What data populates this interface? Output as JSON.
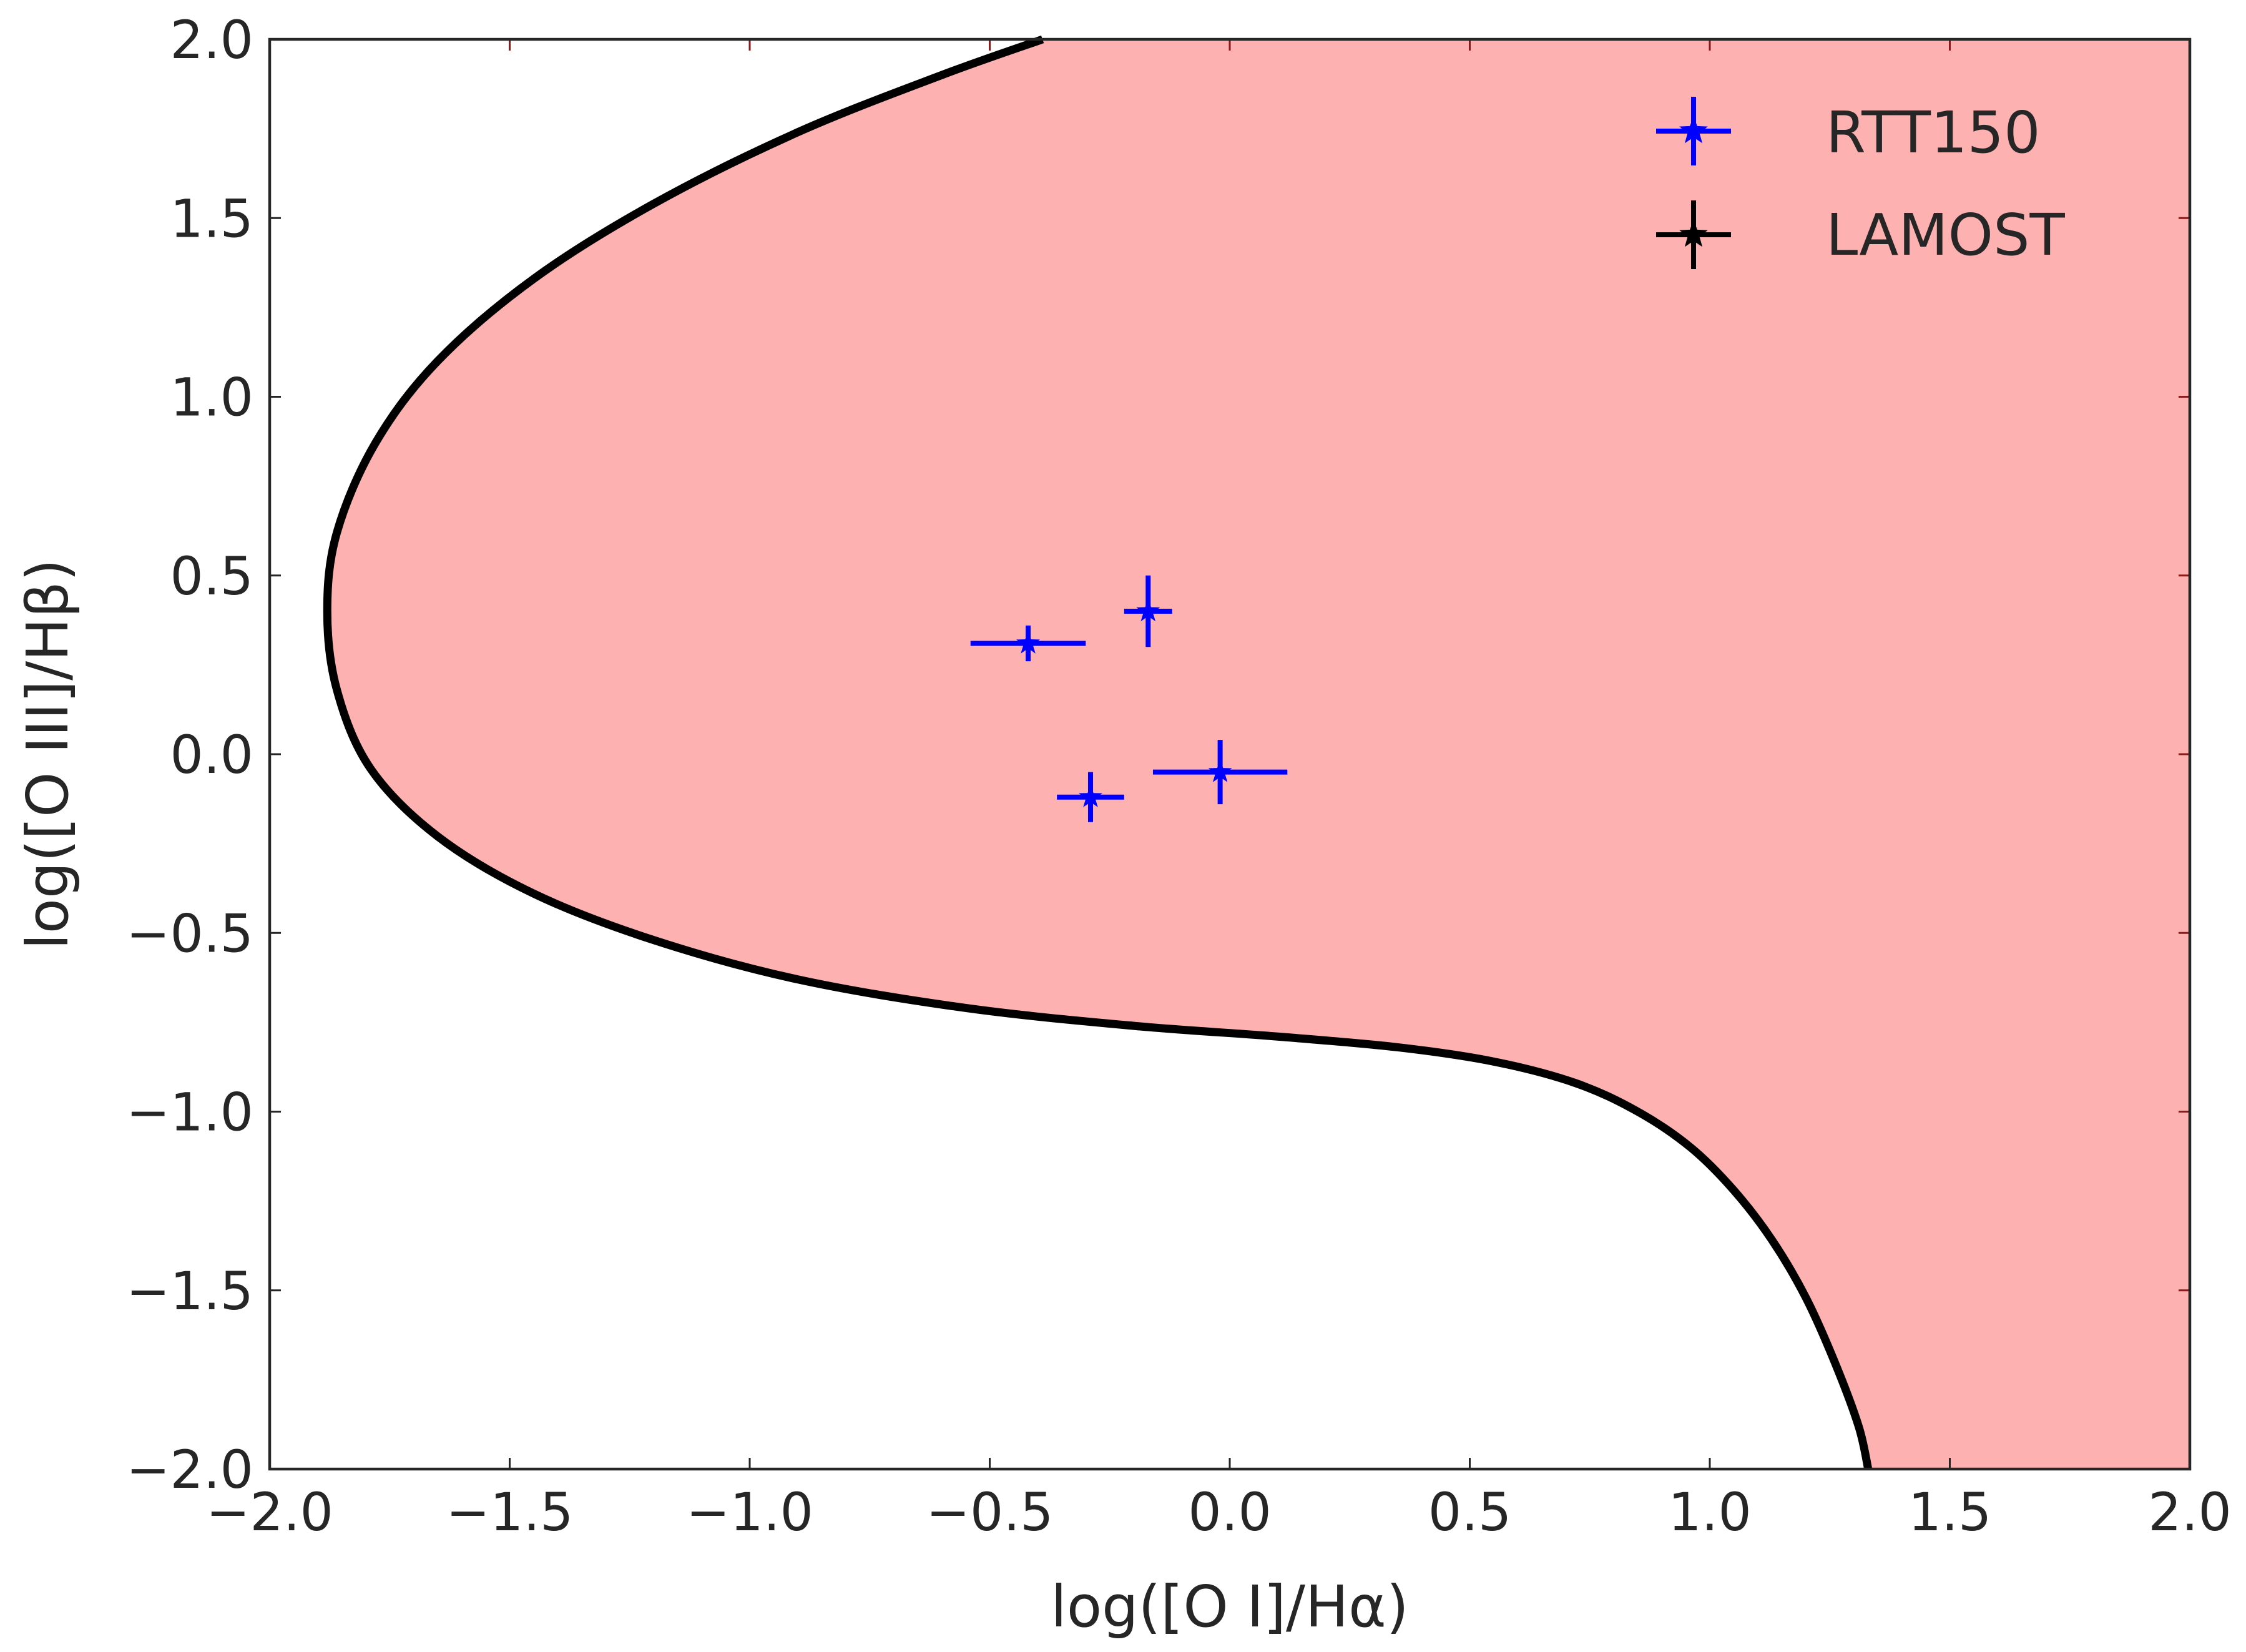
{
  "chart_data": {
    "type": "scatter",
    "xlabel": "log([O I]/Hα)",
    "ylabel": "log([O III]/Hβ)",
    "xlim": [
      -2.0,
      2.0
    ],
    "ylim": [
      -2.0,
      2.0
    ],
    "xticks": [
      -2.0,
      -1.5,
      -1.0,
      -0.5,
      0.0,
      0.5,
      1.0,
      1.5,
      2.0
    ],
    "yticks": [
      -2.0,
      -1.5,
      -1.0,
      -0.5,
      0.0,
      0.5,
      1.0,
      1.5,
      2.0
    ],
    "xtick_labels": [
      "−2.0",
      "−1.5",
      "−1.0",
      "−0.5",
      "0.0",
      "0.5",
      "1.0",
      "1.5",
      "2.0"
    ],
    "ytick_labels": [
      "−2.0",
      "−1.5",
      "−1.0",
      "−0.5",
      "0.0",
      "0.5",
      "1.0",
      "1.5",
      "2.0"
    ],
    "region": {
      "name": "shaded region",
      "color": "#fdb1b1",
      "boundary_color": "#000000",
      "boundary": {
        "x": [
          -0.39,
          -0.6,
          -0.9,
          -1.2,
          -1.45,
          -1.65,
          -1.78,
          -1.86,
          -1.88,
          -1.86,
          -1.79,
          -1.65,
          -1.45,
          -1.2,
          -0.9,
          -0.55,
          -0.2,
          0.1,
          0.35,
          0.55,
          0.72,
          0.85,
          0.96,
          1.05,
          1.13,
          1.2,
          1.26,
          1.31,
          1.33
        ],
        "y": [
          2.0,
          1.9,
          1.74,
          1.54,
          1.33,
          1.1,
          0.87,
          0.62,
          0.4,
          0.18,
          -0.04,
          -0.23,
          -0.39,
          -0.52,
          -0.63,
          -0.71,
          -0.76,
          -0.79,
          -0.82,
          -0.86,
          -0.92,
          -1.0,
          -1.1,
          -1.22,
          -1.36,
          -1.52,
          -1.7,
          -1.88,
          -2.0
        ]
      }
    },
    "series": [
      {
        "name": "RTT150",
        "color": "#0000ff",
        "marker": "star",
        "points": [
          {
            "x": -0.42,
            "y": 0.31,
            "xerr": 0.12,
            "yerr": 0.05
          },
          {
            "x": -0.17,
            "y": 0.4,
            "xerr": 0.05,
            "yerr": 0.1
          },
          {
            "x": -0.29,
            "y": -0.12,
            "xerr": 0.07,
            "yerr": 0.07
          },
          {
            "x": -0.02,
            "y": -0.05,
            "xerr": 0.14,
            "yerr": 0.09
          }
        ]
      },
      {
        "name": "LAMOST",
        "color": "#000000",
        "marker": "star",
        "points": []
      }
    ],
    "legend": {
      "position": "top-right",
      "entries": [
        {
          "label": "RTT150",
          "color": "#0000ff"
        },
        {
          "label": "LAMOST",
          "color": "#000000"
        }
      ]
    },
    "grid": false
  }
}
